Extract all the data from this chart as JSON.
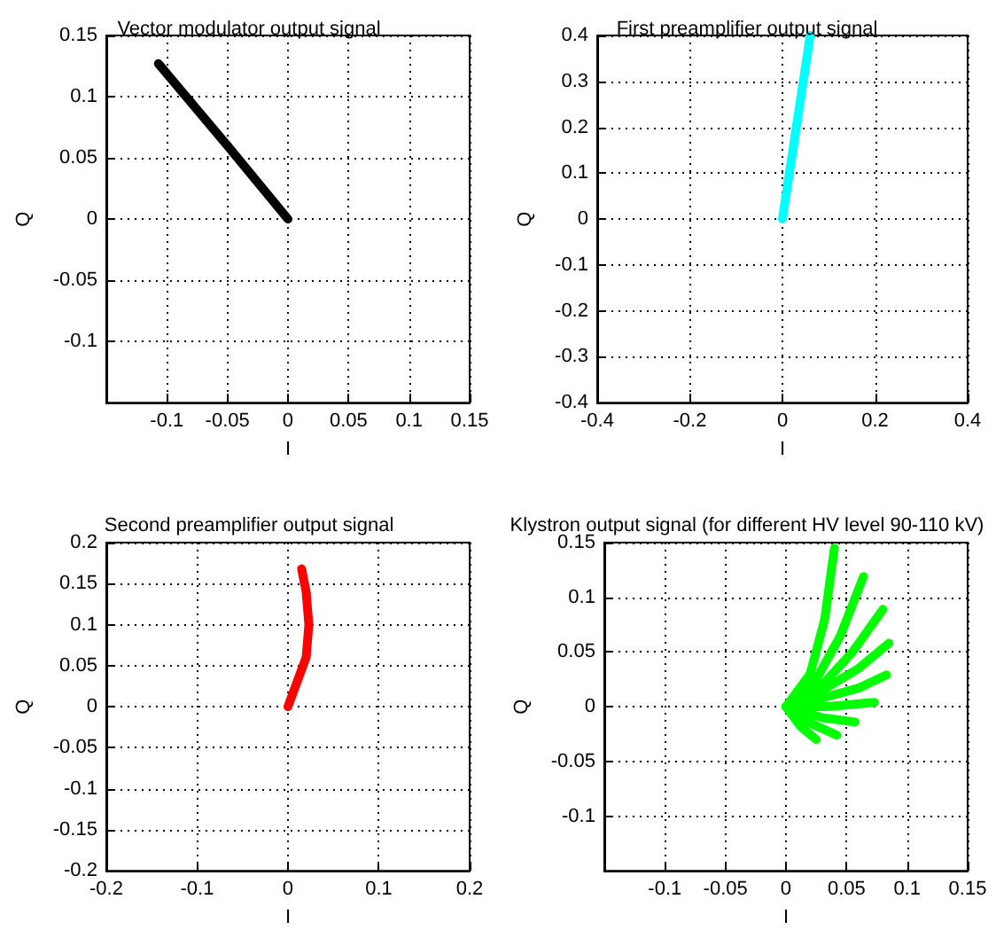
{
  "chart_data": [
    {
      "type": "line",
      "title": "Vector modulator output signal",
      "xlabel": "I",
      "ylabel": "Q",
      "xlim": [
        -0.15,
        0.15
      ],
      "xticks": [
        -0.1,
        -0.05,
        0,
        0.05,
        0.1,
        0.15
      ],
      "ylim": [
        -0.15,
        0.15
      ],
      "yticks": [
        -0.1,
        -0.05,
        0,
        0.05,
        0.1,
        0.15
      ],
      "grid": true,
      "marker": "none",
      "line_style": "solid",
      "series": [
        {
          "color": "#000000",
          "x": [
            0,
            -0.05,
            -0.107
          ],
          "values": [
            0,
            0.06,
            0.127
          ]
        }
      ]
    },
    {
      "type": "line",
      "title": "First preamplifier output signal",
      "xlabel": "I",
      "ylabel": "Q",
      "xlim": [
        -0.4,
        0.4
      ],
      "xticks": [
        -0.4,
        -0.2,
        0,
        0.2,
        0.4
      ],
      "ylim": [
        -0.4,
        0.4
      ],
      "yticks": [
        -0.4,
        -0.3,
        -0.2,
        -0.1,
        0,
        0.1,
        0.2,
        0.3,
        0.4
      ],
      "grid": true,
      "marker": "none",
      "line_style": "solid",
      "series": [
        {
          "color": "#00ffff",
          "x": [
            0,
            0.03,
            0.06
          ],
          "values": [
            0,
            0.2,
            0.4
          ]
        }
      ]
    },
    {
      "type": "line",
      "title": "Second preamplifier output signal",
      "xlabel": "I",
      "ylabel": "Q",
      "xlim": [
        -0.2,
        0.2
      ],
      "xticks": [
        -0.2,
        -0.1,
        0,
        0.1,
        0.2
      ],
      "ylim": [
        -0.2,
        0.2
      ],
      "yticks": [
        -0.2,
        -0.15,
        -0.1,
        -0.05,
        0,
        0.05,
        0.1,
        0.15,
        0.2
      ],
      "grid": true,
      "marker": "none",
      "line_style": "solid",
      "series": [
        {
          "color": "#ff0000",
          "x": [
            0,
            0.01,
            0.02,
            0.023,
            0.02,
            0.015
          ],
          "values": [
            0,
            0.03,
            0.06,
            0.1,
            0.14,
            0.168
          ]
        }
      ]
    },
    {
      "type": "line",
      "title": "Klystron output signal (for different HV level 90-110 kV)",
      "xlabel": "I",
      "ylabel": "Q",
      "xlim": [
        -0.15,
        0.15
      ],
      "xticks": [
        -0.1,
        -0.05,
        0,
        0.05,
        0.1,
        0.15
      ],
      "ylim": [
        -0.15,
        0.15
      ],
      "yticks": [
        -0.1,
        -0.05,
        0,
        0.05,
        0.1,
        0.15
      ],
      "grid": true,
      "marker": "none",
      "line_style": "solid",
      "series": [
        {
          "color": "#00ff00",
          "x": [
            0,
            0.02,
            0.032,
            0.04
          ],
          "values": [
            0,
            0.03,
            0.08,
            0.145
          ]
        },
        {
          "color": "#00ff00",
          "x": [
            0,
            0.025,
            0.045,
            0.064
          ],
          "values": [
            0,
            0.025,
            0.065,
            0.119
          ]
        },
        {
          "color": "#00ff00",
          "x": [
            0,
            0.03,
            0.055,
            0.08
          ],
          "values": [
            0,
            0.02,
            0.05,
            0.089
          ]
        },
        {
          "color": "#00ff00",
          "x": [
            0,
            0.03,
            0.06,
            0.085
          ],
          "values": [
            0,
            0.015,
            0.035,
            0.058
          ]
        },
        {
          "color": "#00ff00",
          "x": [
            0,
            0.03,
            0.06,
            0.083
          ],
          "values": [
            0,
            0.008,
            0.017,
            0.029
          ]
        },
        {
          "color": "#00ff00",
          "x": [
            0,
            0.035,
            0.073
          ],
          "values": [
            0,
            0,
            0.004
          ]
        },
        {
          "color": "#00ff00",
          "x": [
            0,
            0.03,
            0.057
          ],
          "values": [
            0,
            -0.01,
            -0.014
          ]
        },
        {
          "color": "#00ff00",
          "x": [
            0,
            0.02,
            0.042
          ],
          "values": [
            0,
            -0.015,
            -0.026
          ]
        },
        {
          "color": "#00ff00",
          "x": [
            0,
            0.012,
            0.025
          ],
          "values": [
            0,
            -0.018,
            -0.03
          ]
        }
      ]
    }
  ]
}
